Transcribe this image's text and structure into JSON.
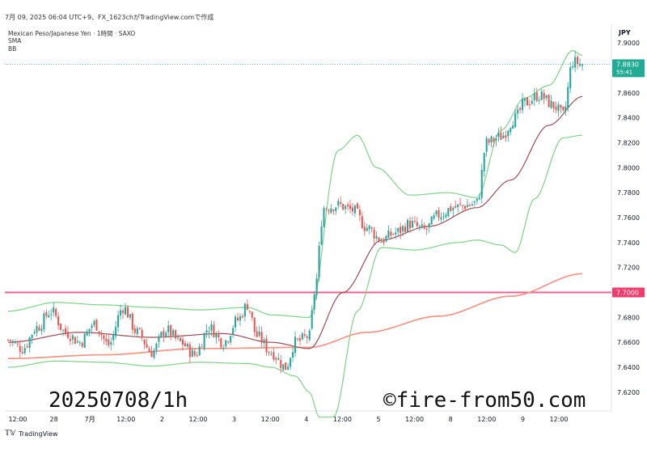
{
  "header": {
    "line": "7月 09, 2025 06:04 UTC+9、FX_1623chがTradingView.comで作成",
    "symbol": "Mexican Peso/Japanese Yen · 1時間 · SAXO",
    "indicators": [
      "SMA",
      "BB"
    ],
    "currency": "JPY"
  },
  "price_tag": {
    "value": "7.8830",
    "countdown": "55:41",
    "color": "#22ab94"
  },
  "level_tag": {
    "value": "7.7000",
    "color": "#f23b6d"
  },
  "footer": {
    "brand": "TradingView",
    "logo_icon": "tv-logo-icon"
  },
  "watermarks": {
    "left": "20250708/1h",
    "right": "©fire-from50.com"
  },
  "colors": {
    "up": "#26a69a",
    "down": "#ef5350",
    "bb": "#7fd188",
    "sma_short": "#9c4d55",
    "sma_long": "#ef9a8a",
    "level": "#f06292"
  },
  "chart_data": {
    "type": "candlestick",
    "ylim": [
      7.605,
      7.915
    ],
    "y_ticks": [
      "7.9000",
      "7.8800",
      "7.8600",
      "7.8400",
      "7.8200",
      "7.8000",
      "7.7800",
      "7.7600",
      "7.7400",
      "7.7200",
      "7.7000",
      "7.6800",
      "7.6600",
      "7.6400",
      "7.6200"
    ],
    "x_labels": [
      "12:00",
      "28",
      "7月",
      "12:00",
      "2",
      "12:00",
      "3",
      "12:00",
      "4",
      "12:00",
      "5",
      "12:00",
      "8",
      "12:00",
      "9",
      "12:00"
    ],
    "horizontal_line": 7.7,
    "last_price": 7.883,
    "close_anchors": [
      [
        0,
        7.662
      ],
      [
        6,
        7.655
      ],
      [
        12,
        7.672
      ],
      [
        18,
        7.685
      ],
      [
        24,
        7.668
      ],
      [
        30,
        7.66
      ],
      [
        36,
        7.675
      ],
      [
        42,
        7.658
      ],
      [
        48,
        7.688
      ],
      [
        54,
        7.668
      ],
      [
        60,
        7.652
      ],
      [
        66,
        7.67
      ],
      [
        72,
        7.66
      ],
      [
        78,
        7.65
      ],
      [
        84,
        7.672
      ],
      [
        90,
        7.66
      ],
      [
        96,
        7.678
      ],
      [
        100,
        7.69
      ],
      [
        104,
        7.665
      ],
      [
        110,
        7.652
      ],
      [
        116,
        7.64
      ],
      [
        120,
        7.66
      ],
      [
        126,
        7.665
      ],
      [
        128,
        7.7
      ],
      [
        132,
        7.768
      ],
      [
        138,
        7.77
      ],
      [
        144,
        7.766
      ],
      [
        150,
        7.752
      ],
      [
        156,
        7.742
      ],
      [
        162,
        7.748
      ],
      [
        168,
        7.755
      ],
      [
        174,
        7.75
      ],
      [
        180,
        7.762
      ],
      [
        186,
        7.768
      ],
      [
        192,
        7.77
      ],
      [
        196,
        7.772
      ],
      [
        200,
        7.82
      ],
      [
        206,
        7.825
      ],
      [
        212,
        7.84
      ],
      [
        216,
        7.852
      ],
      [
        222,
        7.858
      ],
      [
        228,
        7.85
      ],
      [
        232,
        7.842
      ],
      [
        236,
        7.885
      ],
      [
        240,
        7.883
      ]
    ],
    "sma_short_anchors": [
      [
        0,
        7.66
      ],
      [
        30,
        7.668
      ],
      [
        60,
        7.664
      ],
      [
        90,
        7.667
      ],
      [
        110,
        7.66
      ],
      [
        126,
        7.655
      ],
      [
        140,
        7.7
      ],
      [
        156,
        7.742
      ],
      [
        176,
        7.753
      ],
      [
        196,
        7.768
      ],
      [
        210,
        7.79
      ],
      [
        226,
        7.834
      ],
      [
        240,
        7.857
      ]
    ],
    "sma_long_anchors": [
      [
        0,
        7.647
      ],
      [
        40,
        7.65
      ],
      [
        80,
        7.655
      ],
      [
        126,
        7.656
      ],
      [
        150,
        7.668
      ],
      [
        180,
        7.681
      ],
      [
        210,
        7.697
      ],
      [
        240,
        7.715
      ]
    ],
    "bb_upper_anchors": [
      [
        0,
        7.685
      ],
      [
        20,
        7.692
      ],
      [
        40,
        7.69
      ],
      [
        60,
        7.688
      ],
      [
        80,
        7.686
      ],
      [
        100,
        7.688
      ],
      [
        110,
        7.682
      ],
      [
        126,
        7.68
      ],
      [
        138,
        7.814
      ],
      [
        146,
        7.826
      ],
      [
        154,
        7.8
      ],
      [
        168,
        7.778
      ],
      [
        184,
        7.78
      ],
      [
        196,
        7.776
      ],
      [
        206,
        7.83
      ],
      [
        216,
        7.856
      ],
      [
        226,
        7.866
      ],
      [
        236,
        7.894
      ],
      [
        240,
        7.89
      ]
    ],
    "bb_lower_anchors": [
      [
        0,
        7.64
      ],
      [
        20,
        7.645
      ],
      [
        40,
        7.644
      ],
      [
        60,
        7.641
      ],
      [
        80,
        7.644
      ],
      [
        100,
        7.643
      ],
      [
        110,
        7.64
      ],
      [
        120,
        7.633
      ],
      [
        126,
        7.62
      ],
      [
        130,
        7.6
      ],
      [
        136,
        7.6
      ],
      [
        146,
        7.685
      ],
      [
        156,
        7.736
      ],
      [
        170,
        7.734
      ],
      [
        188,
        7.74
      ],
      [
        196,
        7.742
      ],
      [
        206,
        7.738
      ],
      [
        212,
        7.732
      ],
      [
        220,
        7.775
      ],
      [
        232,
        7.824
      ],
      [
        240,
        7.826
      ]
    ]
  }
}
